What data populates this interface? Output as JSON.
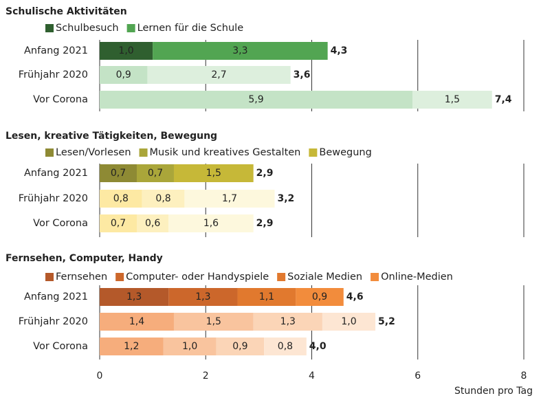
{
  "chart_data": {
    "type": "stacked-bar",
    "xlim": [
      0,
      8
    ],
    "xticks": [
      0,
      2,
      4,
      6,
      8
    ],
    "xlabel": "Stunden pro Tag",
    "categories": [
      "Anfang 2021",
      "Frühjahr 2020",
      "Vor Corona"
    ],
    "panels": [
      {
        "title": "Schulische Aktivitäten",
        "series": [
          {
            "name": "Schulbesuch",
            "colors": [
              "#2f5f2f",
              "#c4e3c6",
              "#c4e3c6"
            ],
            "values": [
              1.0,
              0.9,
              5.9
            ],
            "value_labels": [
              "1,0",
              "0,9",
              "5,9"
            ]
          },
          {
            "name": "Lernen für die Schule",
            "colors": [
              "#52a552",
              "#ddefdd",
              "#ddefdd"
            ],
            "values": [
              3.3,
              2.7,
              1.5
            ],
            "value_labels": [
              "3,3",
              "2,7",
              "1,5"
            ]
          }
        ],
        "totals": [
          4.3,
          3.6,
          7.4
        ],
        "total_labels": [
          "4,3",
          "3,6",
          "7,4"
        ]
      },
      {
        "title": "Lesen, kreative Tätigkeiten, Bewegung",
        "series": [
          {
            "name": "Lesen/Vorlesen",
            "colors": [
              "#8e8a34",
              "#fde9a3",
              "#fde9a3"
            ],
            "values": [
              0.7,
              0.8,
              0.7
            ],
            "value_labels": [
              "0,7",
              "0,8",
              "0,7"
            ]
          },
          {
            "name": "Musik und kreatives Gestalten",
            "colors": [
              "#aaa63a",
              "#fdf0bf",
              "#fdf0bf"
            ],
            "values": [
              0.7,
              0.8,
              0.6
            ],
            "value_labels": [
              "0,7",
              "0,8",
              "0,6"
            ]
          },
          {
            "name": "Bewegung",
            "colors": [
              "#c6b838",
              "#fdf8dd",
              "#fdf8dd"
            ],
            "values": [
              1.5,
              1.7,
              1.6
            ],
            "value_labels": [
              "1,5",
              "1,7",
              "1,6"
            ]
          }
        ],
        "totals": [
          2.9,
          3.2,
          2.9
        ],
        "total_labels": [
          "2,9",
          "3,2",
          "2,9"
        ]
      },
      {
        "title": "Fernsehen, Computer, Handy",
        "series": [
          {
            "name": "Fernsehen",
            "colors": [
              "#b4592a",
              "#f6ad7c",
              "#f6ad7c"
            ],
            "values": [
              1.3,
              1.4,
              1.2
            ],
            "value_labels": [
              "1,3",
              "1,4",
              "1,2"
            ]
          },
          {
            "name": "Computer- oder Handyspiele",
            "colors": [
              "#cc672b",
              "#f9c49e",
              "#f9c49e"
            ],
            "values": [
              1.3,
              1.5,
              1.0
            ],
            "value_labels": [
              "1,3",
              "1,5",
              "1,0"
            ]
          },
          {
            "name": "Soziale Medien",
            "colors": [
              "#e1792e",
              "#fbd5b7",
              "#fbd5b7"
            ],
            "values": [
              1.1,
              1.3,
              0.9
            ],
            "value_labels": [
              "1,1",
              "1,3",
              "0,9"
            ]
          },
          {
            "name": "Online-Medien",
            "colors": [
              "#f28c3c",
              "#fde6d3",
              "#fde6d3"
            ],
            "values": [
              0.9,
              1.0,
              0.8
            ],
            "value_labels": [
              "0,9",
              "1,0",
              "0,8"
            ]
          }
        ],
        "totals": [
          4.6,
          5.2,
          4.0
        ],
        "total_labels": [
          "4,6",
          "5,2",
          "4,0"
        ]
      }
    ]
  }
}
